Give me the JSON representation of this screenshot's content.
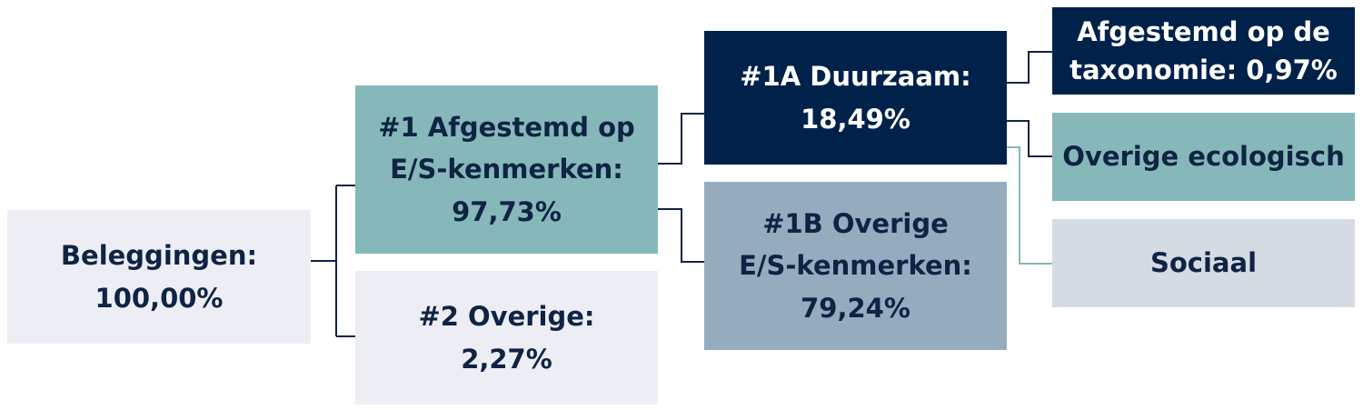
{
  "nodes": {
    "beleggingen": {
      "line1": "Beleggingen:",
      "line2": "100,00%"
    },
    "n1": {
      "line1": "#1 Afgestemd op",
      "line2": "E/S-kenmerken:",
      "line3": "97,73%"
    },
    "n2": {
      "line1": "#2 Overige:",
      "line2": "2,27%"
    },
    "n1a": {
      "line1": "#1A Duurzaam:",
      "line2": "18,49%"
    },
    "n1b": {
      "line1": "#1B Overige",
      "line2": "E/S-kenmerken:",
      "line3": "79,24%"
    },
    "taxonomie": {
      "line1": "Afgestemd op de",
      "line2": "taxonomie: 0,97%"
    },
    "ecologisch": {
      "line1": "Overige ecologisch"
    },
    "sociaal": {
      "line1": "Sociaal"
    }
  },
  "colors": {
    "text_dark": "#0f2344",
    "light": "#eceef4",
    "teal": "#86b8ba",
    "navy": "#00214a",
    "slate": "#95acbe",
    "grey": "#d4dbe2"
  }
}
